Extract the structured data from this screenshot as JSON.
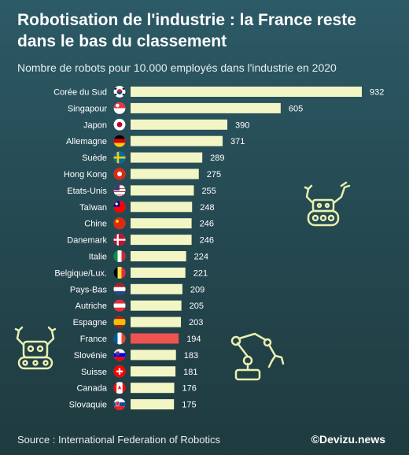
{
  "header": {
    "title": "Robotisation de l'industrie : la France reste dans le bas du classement",
    "subtitle": "Nombre de robots pour 10.000 employés dans l'industrie en 2020"
  },
  "footer": {
    "source": "Source : International Federation of Robotics",
    "credit": "©Devizu.news"
  },
  "colors": {
    "bar": "#f2f5c4",
    "highlight": "#ef5350",
    "background": "#2c5a66",
    "decor": "#e9f0b0"
  },
  "icons": [
    "robot-arm-icon",
    "robot-claw-icon",
    "robot-tank-icon",
    "country-flag-icons"
  ],
  "chart_data": {
    "type": "bar",
    "orientation": "horizontal",
    "title": "Robotisation de l'industrie : la France reste dans le bas du classement",
    "subtitle": "Nombre de robots pour 10.000 employés dans l'industrie en 2020",
    "categories": [
      "Corée du Sud",
      "Singapour",
      "Japon",
      "Allemagne",
      "Suède",
      "Hong Kong",
      "Etats-Unis",
      "Taïwan",
      "Chine",
      "Danemark",
      "Italie",
      "Belgique/Lux.",
      "Pays-Bas",
      "Autriche",
      "Espagne",
      "France",
      "Slovénie",
      "Suisse",
      "Canada",
      "Slovaquie"
    ],
    "values": [
      932,
      605,
      390,
      371,
      289,
      275,
      255,
      248,
      246,
      246,
      224,
      221,
      209,
      205,
      203,
      194,
      183,
      181,
      176,
      175
    ],
    "highlight": "France",
    "xlim": [
      0,
      932
    ],
    "grid": false,
    "legend": "none",
    "data_labels": true
  }
}
